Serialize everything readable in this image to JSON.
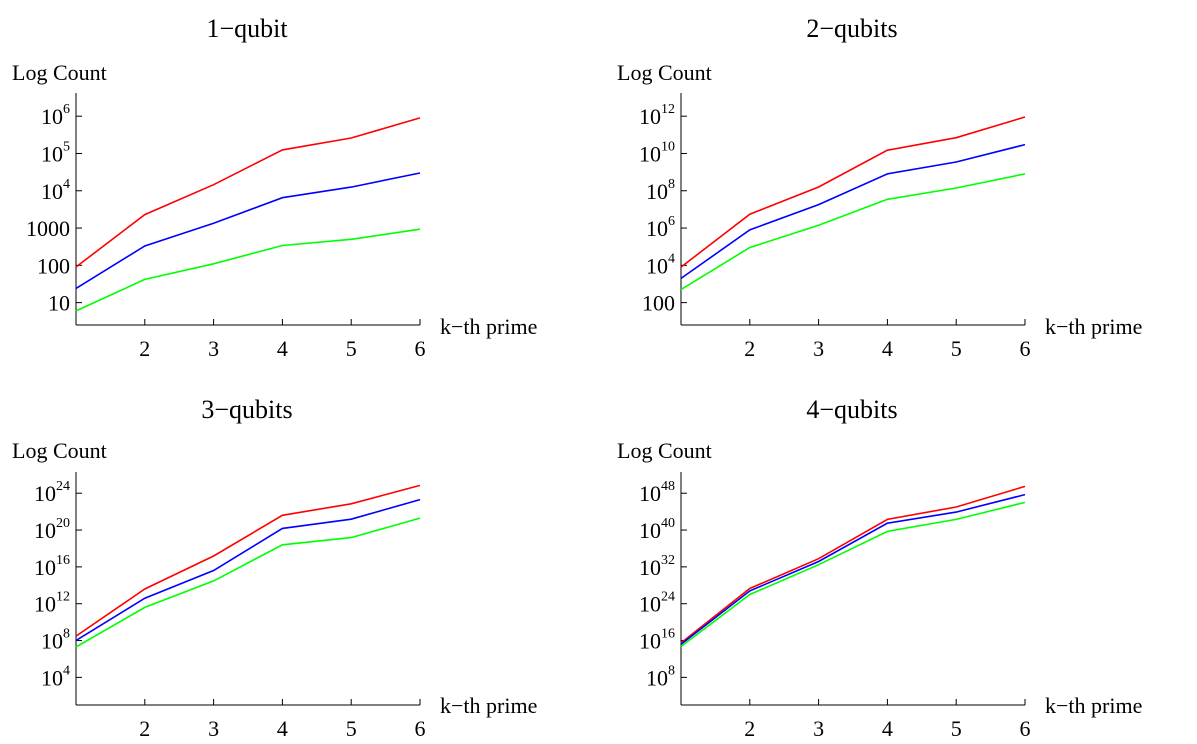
{
  "chart_data": [
    {
      "type": "line",
      "title": "1−qubit",
      "xlabel": "k−th prime",
      "ylabel": "Log Count",
      "yscale": "log",
      "x": [
        1,
        2,
        3,
        4,
        5,
        6
      ],
      "xticks": [
        "2",
        "3",
        "4",
        "5",
        "6"
      ],
      "ylim_log10": [
        0.4,
        6.3
      ],
      "yticks": [
        {
          "base": "10",
          "exp": ""
        },
        {
          "base": "100",
          "exp": ""
        },
        {
          "base": "1000",
          "exp": ""
        },
        {
          "base": "10",
          "exp": "4"
        },
        {
          "base": "10",
          "exp": "5"
        },
        {
          "base": "10",
          "exp": "6"
        }
      ],
      "series": [
        {
          "color": "#ff0000",
          "values": [
            90,
            2300,
            14500,
            125000,
            260000,
            900000
          ]
        },
        {
          "color": "#0000ff",
          "values": [
            24,
            330,
            1350,
            6500,
            12500,
            30000
          ]
        },
        {
          "color": "#00ff00",
          "values": [
            6,
            42,
            110,
            340,
            500,
            930
          ]
        }
      ]
    },
    {
      "type": "line",
      "title": "2−qubits",
      "xlabel": "k−th prime",
      "ylabel": "Log Count",
      "yscale": "log",
      "x": [
        1,
        2,
        3,
        4,
        5,
        6
      ],
      "xticks": [
        "2",
        "3",
        "4",
        "5",
        "6"
      ],
      "ylim_log10": [
        0.8,
        12.6
      ],
      "yticks": [
        {
          "base": "100",
          "exp": ""
        },
        {
          "base": "10",
          "exp": "4"
        },
        {
          "base": "10",
          "exp": "6"
        },
        {
          "base": "10",
          "exp": "8"
        },
        {
          "base": "10",
          "exp": "10"
        },
        {
          "base": "10",
          "exp": "12"
        }
      ],
      "series": [
        {
          "color": "#ff0000",
          "values": [
            8000,
            5500000,
            160000000,
            15000000000,
            70000000000,
            900000000000
          ]
        },
        {
          "color": "#0000ff",
          "values": [
            2000,
            800000,
            18000000,
            800000000,
            3500000000,
            30000000000
          ]
        },
        {
          "color": "#00ff00",
          "values": [
            500,
            90000,
            1400000,
            35000000,
            140000000,
            800000000
          ]
        }
      ]
    },
    {
      "type": "line",
      "title": "3−qubits",
      "xlabel": "k−th prime",
      "ylabel": "Log Count",
      "yscale": "log",
      "x": [
        1,
        2,
        3,
        4,
        5,
        6
      ],
      "xticks": [
        "2",
        "3",
        "4",
        "5",
        "6"
      ],
      "ylim_log10": [
        1.0,
        25.0
      ],
      "yticks": [
        {
          "base": "10",
          "exp": "4"
        },
        {
          "base": "10",
          "exp": "8"
        },
        {
          "base": "10",
          "exp": "12"
        },
        {
          "base": "10",
          "exp": "16"
        },
        {
          "base": "10",
          "exp": "20"
        },
        {
          "base": "10",
          "exp": "24"
        }
      ],
      "series": [
        {
          "color": "#ff0000",
          "values": [
            300000000.0,
            40000000000000.0,
            1.5e+17,
            4e+21,
            7e+22,
            7e+24
          ]
        },
        {
          "color": "#0000ff",
          "values": [
            100000000.0,
            4000000000000.0,
            4000000000000000.0,
            1.5e+20,
            1.5e+21,
            2e+23
          ]
        },
        {
          "color": "#00ff00",
          "values": [
            20000000.0,
            400000000000.0,
            300000000000000.0,
            2.5e+18,
            1.5e+19,
            2e+21
          ]
        }
      ]
    },
    {
      "type": "line",
      "title": "4−qubits",
      "xlabel": "k−th prime",
      "ylabel": "Log Count",
      "yscale": "log",
      "x": [
        1,
        2,
        3,
        4,
        5,
        6
      ],
      "xticks": [
        "2",
        "3",
        "4",
        "5",
        "6"
      ],
      "ylim_log10": [
        2.0,
        50.0
      ],
      "yticks": [
        {
          "base": "10",
          "exp": "8"
        },
        {
          "base": "10",
          "exp": "16"
        },
        {
          "base": "10",
          "exp": "24"
        },
        {
          "base": "10",
          "exp": "32"
        },
        {
          "base": "10",
          "exp": "40"
        },
        {
          "base": "10",
          "exp": "48"
        }
      ],
      "series": [
        {
          "color": "#ff0000",
          "values": [
            3000000000000000.0,
            2e+27,
            6e+33,
            2e+42,
            1e+45,
            3e+49
          ]
        },
        {
          "color": "#0000ff",
          "values": [
            1500000000000000.0,
            6e+26,
            1.5e+33,
            3e+41,
            8e+43,
            5e+47
          ]
        },
        {
          "color": "#00ff00",
          "values": [
            500000000000000.0,
            1e+26,
            3e+32,
            5e+39,
            2e+42,
            1e+46
          ]
        }
      ]
    }
  ]
}
